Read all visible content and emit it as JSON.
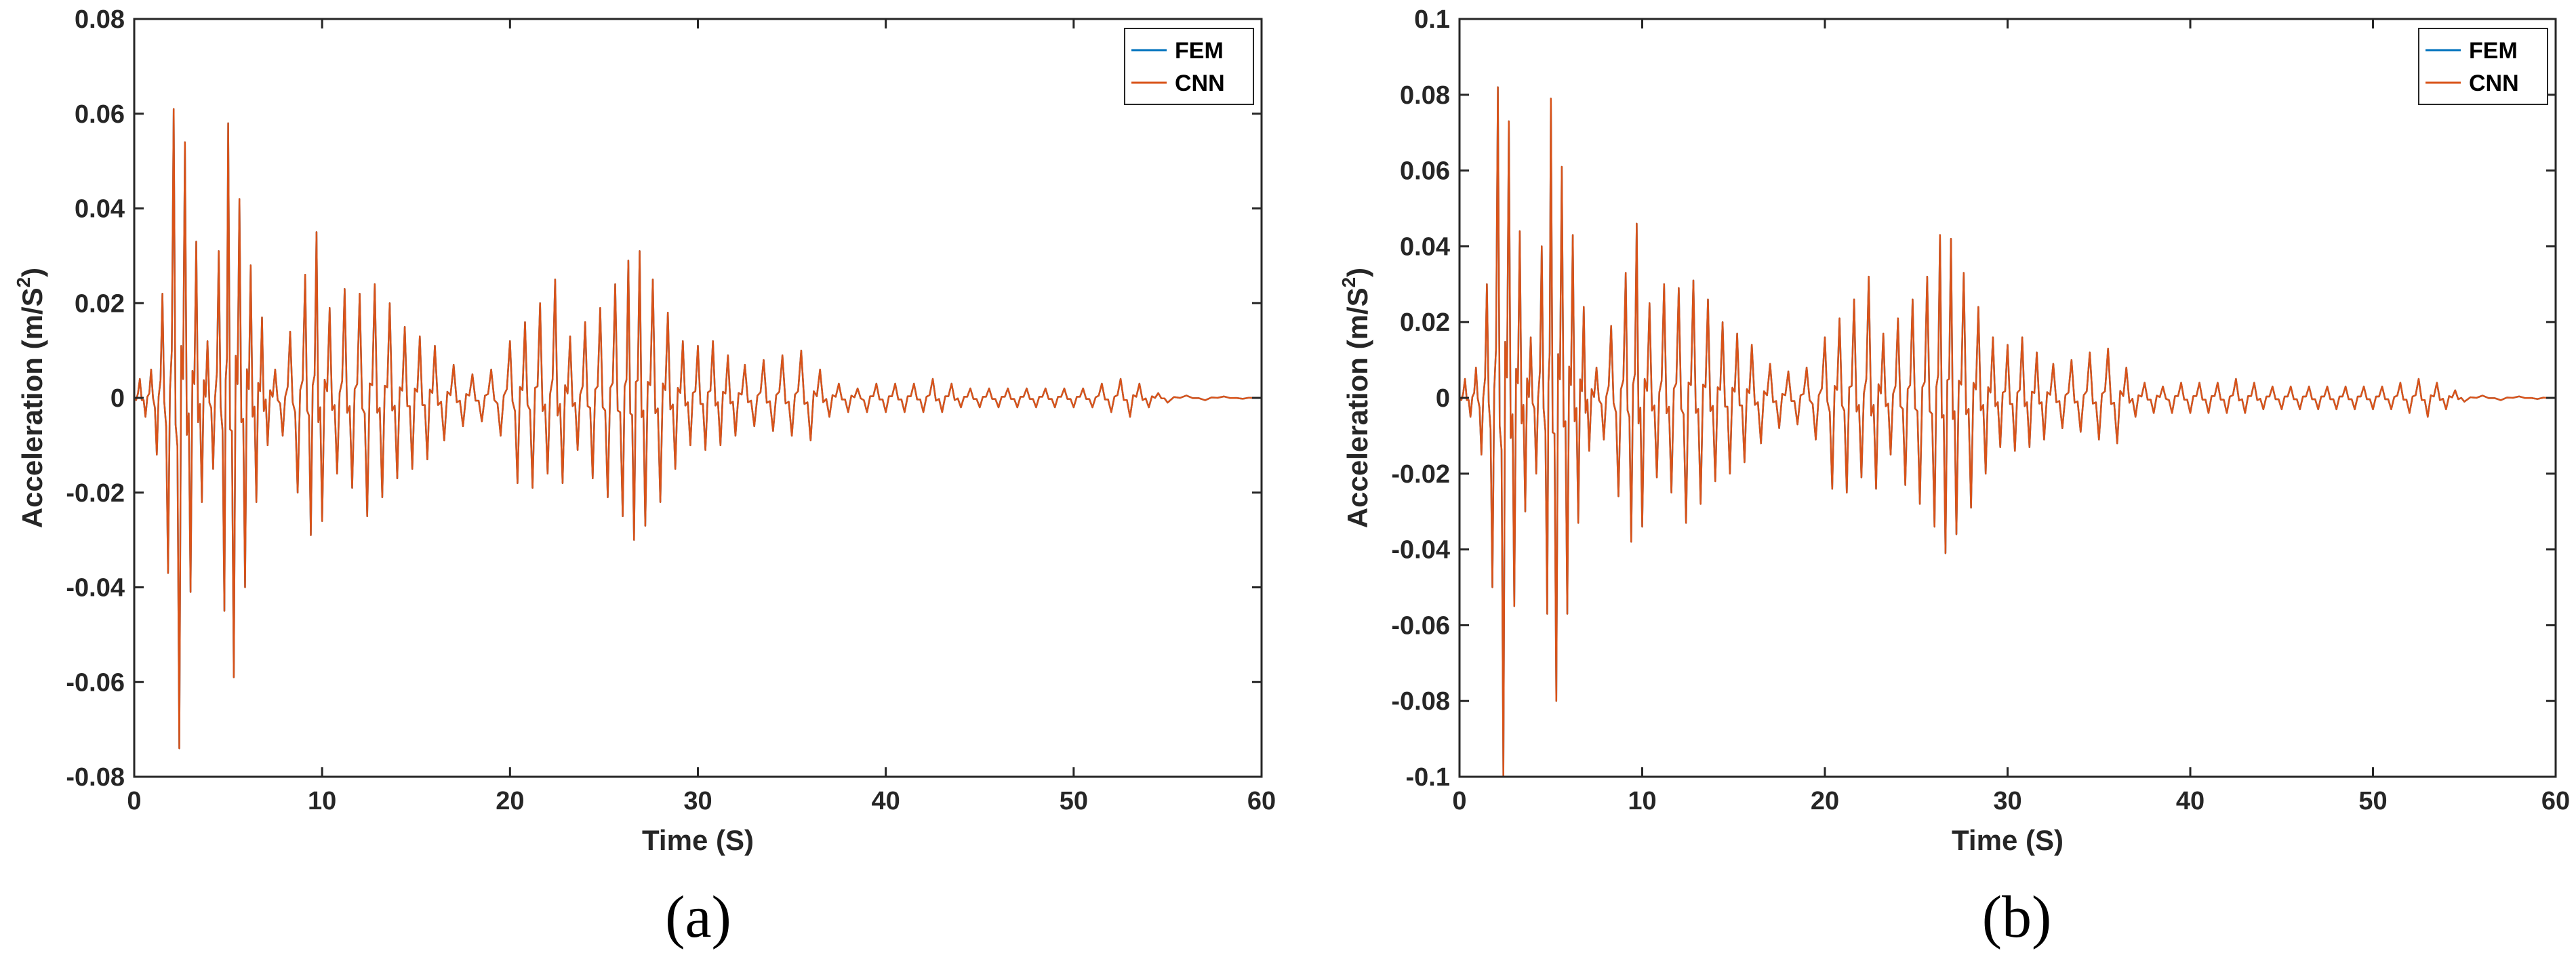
{
  "figure": {
    "panel_labels": [
      "(a)",
      "(b)"
    ]
  },
  "chart_data": [
    {
      "type": "line",
      "panel": "(a)",
      "xlabel": "Time (S)",
      "ylabel_main": "Acceleration (m/S",
      "ylabel_sup": "2",
      "ylabel_close": ")",
      "xlim": [
        0,
        60
      ],
      "ylim": [
        -0.08,
        0.08
      ],
      "xticks": [
        0,
        10,
        20,
        30,
        40,
        50,
        60
      ],
      "xtick_labels": [
        "0",
        "10",
        "20",
        "30",
        "40",
        "50",
        "60"
      ],
      "yticks": [
        -0.08,
        -0.06,
        -0.04,
        -0.02,
        0,
        0.02,
        0.04,
        0.06,
        0.08
      ],
      "ytick_labels": [
        "-0.08",
        "-0.06",
        "-0.04",
        "-0.02",
        "0",
        "0.02",
        "0.04",
        "0.06",
        "0.08"
      ],
      "grid": false,
      "legend_position": "top-right",
      "series": [
        {
          "name": "FEM",
          "color": "#0072BD"
        },
        {
          "name": "CNN",
          "color": "#D95319"
        }
      ],
      "peaks": [
        [
          0.3,
          0.004
        ],
        [
          0.6,
          -0.004
        ],
        [
          0.9,
          0.006
        ],
        [
          1.2,
          -0.012
        ],
        [
          1.5,
          0.022
        ],
        [
          1.8,
          -0.037
        ],
        [
          2.1,
          0.061
        ],
        [
          2.4,
          -0.074
        ],
        [
          2.7,
          0.054
        ],
        [
          3.0,
          -0.041
        ],
        [
          3.3,
          0.033
        ],
        [
          3.6,
          -0.022
        ],
        [
          3.9,
          0.012
        ],
        [
          4.2,
          -0.015
        ],
        [
          4.5,
          0.031
        ],
        [
          4.8,
          -0.045
        ],
        [
          5.0,
          0.058
        ],
        [
          5.3,
          -0.059
        ],
        [
          5.6,
          0.042
        ],
        [
          5.9,
          -0.04
        ],
        [
          6.2,
          0.028
        ],
        [
          6.5,
          -0.022
        ],
        [
          6.8,
          0.017
        ],
        [
          7.1,
          -0.01
        ],
        [
          7.5,
          0.006
        ],
        [
          7.9,
          -0.008
        ],
        [
          8.3,
          0.014
        ],
        [
          8.7,
          -0.02
        ],
        [
          9.1,
          0.026
        ],
        [
          9.4,
          -0.029
        ],
        [
          9.7,
          0.035
        ],
        [
          10.0,
          -0.026
        ],
        [
          10.4,
          0.019
        ],
        [
          10.8,
          -0.016
        ],
        [
          11.2,
          0.023
        ],
        [
          11.6,
          -0.019
        ],
        [
          12.0,
          0.022
        ],
        [
          12.4,
          -0.025
        ],
        [
          12.8,
          0.024
        ],
        [
          13.2,
          -0.021
        ],
        [
          13.6,
          0.02
        ],
        [
          14.0,
          -0.017
        ],
        [
          14.4,
          0.015
        ],
        [
          14.8,
          -0.015
        ],
        [
          15.2,
          0.013
        ],
        [
          15.6,
          -0.013
        ],
        [
          16.0,
          0.011
        ],
        [
          16.5,
          -0.009
        ],
        [
          17.0,
          0.007
        ],
        [
          17.5,
          -0.006
        ],
        [
          18.0,
          0.005
        ],
        [
          18.5,
          -0.005
        ],
        [
          19.0,
          0.006
        ],
        [
          19.5,
          -0.008
        ],
        [
          20.0,
          0.012
        ],
        [
          20.4,
          -0.018
        ],
        [
          20.8,
          0.016
        ],
        [
          21.2,
          -0.019
        ],
        [
          21.6,
          0.02
        ],
        [
          22.0,
          -0.016
        ],
        [
          22.4,
          0.025
        ],
        [
          22.8,
          -0.018
        ],
        [
          23.2,
          0.013
        ],
        [
          23.6,
          -0.011
        ],
        [
          24.0,
          0.016
        ],
        [
          24.4,
          -0.017
        ],
        [
          24.8,
          0.019
        ],
        [
          25.2,
          -0.021
        ],
        [
          25.6,
          0.024
        ],
        [
          26.0,
          -0.025
        ],
        [
          26.3,
          0.029
        ],
        [
          26.6,
          -0.03
        ],
        [
          26.9,
          0.031
        ],
        [
          27.2,
          -0.027
        ],
        [
          27.6,
          0.025
        ],
        [
          28.0,
          -0.022
        ],
        [
          28.4,
          0.018
        ],
        [
          28.8,
          -0.015
        ],
        [
          29.2,
          0.012
        ],
        [
          29.6,
          -0.01
        ],
        [
          30.0,
          0.011
        ],
        [
          30.4,
          -0.011
        ],
        [
          30.8,
          0.012
        ],
        [
          31.2,
          -0.01
        ],
        [
          31.6,
          0.009
        ],
        [
          32.0,
          -0.008
        ],
        [
          32.5,
          0.007
        ],
        [
          33.0,
          -0.006
        ],
        [
          33.5,
          0.008
        ],
        [
          34.0,
          -0.007
        ],
        [
          34.5,
          0.009
        ],
        [
          35.0,
          -0.008
        ],
        [
          35.5,
          0.01
        ],
        [
          36.0,
          -0.009
        ],
        [
          36.5,
          0.006
        ],
        [
          37.0,
          -0.004
        ],
        [
          37.5,
          0.003
        ],
        [
          38.0,
          -0.003
        ],
        [
          38.5,
          0.002
        ],
        [
          39.0,
          -0.003
        ],
        [
          39.5,
          0.003
        ],
        [
          40.0,
          -0.003
        ],
        [
          40.5,
          0.003
        ],
        [
          41.0,
          -0.003
        ],
        [
          41.5,
          0.003
        ],
        [
          42.0,
          -0.003
        ],
        [
          42.5,
          0.004
        ],
        [
          43.0,
          -0.003
        ],
        [
          43.5,
          0.003
        ],
        [
          44.0,
          -0.002
        ],
        [
          44.5,
          0.002
        ],
        [
          45.0,
          -0.002
        ],
        [
          45.5,
          0.002
        ],
        [
          46.0,
          -0.002
        ],
        [
          46.5,
          0.002
        ],
        [
          47.0,
          -0.002
        ],
        [
          47.5,
          0.002
        ],
        [
          48.0,
          -0.002
        ],
        [
          48.5,
          0.002
        ],
        [
          49.0,
          -0.002
        ],
        [
          49.5,
          0.002
        ],
        [
          50.0,
          -0.002
        ],
        [
          50.5,
          0.002
        ],
        [
          51.0,
          -0.002
        ],
        [
          51.5,
          0.003
        ],
        [
          52.0,
          -0.003
        ],
        [
          52.5,
          0.004
        ],
        [
          53.0,
          -0.004
        ],
        [
          53.5,
          0.003
        ],
        [
          54.0,
          -0.002
        ],
        [
          54.5,
          0.001
        ],
        [
          55.0,
          -0.001
        ],
        [
          56.0,
          0.0005
        ],
        [
          57.0,
          -0.0005
        ],
        [
          58.0,
          0.0003
        ],
        [
          59.0,
          -0.0002
        ],
        [
          60.0,
          0
        ]
      ]
    },
    {
      "type": "line",
      "panel": "(b)",
      "xlabel": "Time (S)",
      "ylabel_main": "Acceleration (m/S",
      "ylabel_sup": "2",
      "ylabel_close": ")",
      "xlim": [
        0,
        60
      ],
      "ylim": [
        -0.1,
        0.1
      ],
      "xticks": [
        0,
        10,
        20,
        30,
        40,
        50,
        60
      ],
      "xtick_labels": [
        "0",
        "10",
        "20",
        "30",
        "40",
        "50",
        "60"
      ],
      "yticks": [
        -0.1,
        -0.08,
        -0.06,
        -0.04,
        -0.02,
        0,
        0.02,
        0.04,
        0.06,
        0.08,
        0.1
      ],
      "ytick_labels": [
        "-0.1",
        "-0.08",
        "-0.06",
        "-0.04",
        "-0.02",
        "0",
        "0.02",
        "0.04",
        "0.06",
        "0.08",
        "0.1"
      ],
      "grid": false,
      "legend_position": "top-right",
      "series": [
        {
          "name": "FEM",
          "color": "#0072BD"
        },
        {
          "name": "CNN",
          "color": "#D95319"
        }
      ],
      "peaks": [
        [
          0.3,
          0.005
        ],
        [
          0.6,
          -0.005
        ],
        [
          0.9,
          0.008
        ],
        [
          1.2,
          -0.015
        ],
        [
          1.5,
          0.03
        ],
        [
          1.8,
          -0.05
        ],
        [
          2.1,
          0.082
        ],
        [
          2.4,
          -0.1
        ],
        [
          2.7,
          0.073
        ],
        [
          3.0,
          -0.055
        ],
        [
          3.3,
          0.044
        ],
        [
          3.6,
          -0.03
        ],
        [
          3.9,
          0.016
        ],
        [
          4.2,
          -0.02
        ],
        [
          4.5,
          0.04
        ],
        [
          4.8,
          -0.057
        ],
        [
          5.0,
          0.079
        ],
        [
          5.3,
          -0.08
        ],
        [
          5.6,
          0.061
        ],
        [
          5.9,
          -0.057
        ],
        [
          6.2,
          0.043
        ],
        [
          6.5,
          -0.033
        ],
        [
          6.8,
          0.024
        ],
        [
          7.1,
          -0.014
        ],
        [
          7.5,
          0.008
        ],
        [
          7.9,
          -0.011
        ],
        [
          8.3,
          0.019
        ],
        [
          8.7,
          -0.026
        ],
        [
          9.1,
          0.033
        ],
        [
          9.4,
          -0.038
        ],
        [
          9.7,
          0.046
        ],
        [
          10.0,
          -0.034
        ],
        [
          10.4,
          0.025
        ],
        [
          10.8,
          -0.021
        ],
        [
          11.2,
          0.03
        ],
        [
          11.6,
          -0.025
        ],
        [
          12.0,
          0.029
        ],
        [
          12.4,
          -0.033
        ],
        [
          12.8,
          0.031
        ],
        [
          13.2,
          -0.028
        ],
        [
          13.6,
          0.026
        ],
        [
          14.0,
          -0.022
        ],
        [
          14.4,
          0.02
        ],
        [
          14.8,
          -0.02
        ],
        [
          15.2,
          0.017
        ],
        [
          15.6,
          -0.017
        ],
        [
          16.0,
          0.014
        ],
        [
          16.5,
          -0.012
        ],
        [
          17.0,
          0.009
        ],
        [
          17.5,
          -0.008
        ],
        [
          18.0,
          0.007
        ],
        [
          18.5,
          -0.007
        ],
        [
          19.0,
          0.008
        ],
        [
          19.5,
          -0.011
        ],
        [
          20.0,
          0.016
        ],
        [
          20.4,
          -0.024
        ],
        [
          20.8,
          0.021
        ],
        [
          21.2,
          -0.025
        ],
        [
          21.6,
          0.026
        ],
        [
          22.0,
          -0.021
        ],
        [
          22.4,
          0.032
        ],
        [
          22.8,
          -0.024
        ],
        [
          23.2,
          0.017
        ],
        [
          23.6,
          -0.015
        ],
        [
          24.0,
          0.021
        ],
        [
          24.4,
          -0.023
        ],
        [
          24.8,
          0.026
        ],
        [
          25.2,
          -0.028
        ],
        [
          25.6,
          0.032
        ],
        [
          26.0,
          -0.034
        ],
        [
          26.3,
          0.043
        ],
        [
          26.6,
          -0.041
        ],
        [
          26.9,
          0.042
        ],
        [
          27.2,
          -0.036
        ],
        [
          27.6,
          0.033
        ],
        [
          28.0,
          -0.029
        ],
        [
          28.4,
          0.024
        ],
        [
          28.8,
          -0.02
        ],
        [
          29.2,
          0.016
        ],
        [
          29.6,
          -0.013
        ],
        [
          30.0,
          0.014
        ],
        [
          30.4,
          -0.014
        ],
        [
          30.8,
          0.016
        ],
        [
          31.2,
          -0.013
        ],
        [
          31.6,
          0.012
        ],
        [
          32.0,
          -0.011
        ],
        [
          32.5,
          0.009
        ],
        [
          33.0,
          -0.008
        ],
        [
          33.5,
          0.01
        ],
        [
          34.0,
          -0.009
        ],
        [
          34.5,
          0.012
        ],
        [
          35.0,
          -0.011
        ],
        [
          35.5,
          0.013
        ],
        [
          36.0,
          -0.012
        ],
        [
          36.5,
          0.008
        ],
        [
          37.0,
          -0.005
        ],
        [
          37.5,
          0.004
        ],
        [
          38.0,
          -0.004
        ],
        [
          38.5,
          0.003
        ],
        [
          39.0,
          -0.004
        ],
        [
          39.5,
          0.004
        ],
        [
          40.0,
          -0.004
        ],
        [
          40.5,
          0.004
        ],
        [
          41.0,
          -0.004
        ],
        [
          41.5,
          0.004
        ],
        [
          42.0,
          -0.004
        ],
        [
          42.5,
          0.005
        ],
        [
          43.0,
          -0.004
        ],
        [
          43.5,
          0.004
        ],
        [
          44.0,
          -0.003
        ],
        [
          44.5,
          0.003
        ],
        [
          45.0,
          -0.003
        ],
        [
          45.5,
          0.003
        ],
        [
          46.0,
          -0.003
        ],
        [
          46.5,
          0.003
        ],
        [
          47.0,
          -0.003
        ],
        [
          47.5,
          0.003
        ],
        [
          48.0,
          -0.003
        ],
        [
          48.5,
          0.003
        ],
        [
          49.0,
          -0.003
        ],
        [
          49.5,
          0.003
        ],
        [
          50.0,
          -0.003
        ],
        [
          50.5,
          0.003
        ],
        [
          51.0,
          -0.003
        ],
        [
          51.5,
          0.004
        ],
        [
          52.0,
          -0.004
        ],
        [
          52.5,
          0.005
        ],
        [
          53.0,
          -0.005
        ],
        [
          53.5,
          0.004
        ],
        [
          54.0,
          -0.003
        ],
        [
          54.5,
          0.002
        ],
        [
          55.0,
          -0.001
        ],
        [
          56.0,
          0.0006
        ],
        [
          57.0,
          -0.0006
        ],
        [
          58.0,
          0.0004
        ],
        [
          59.0,
          -0.0003
        ],
        [
          60.0,
          0
        ]
      ]
    }
  ]
}
